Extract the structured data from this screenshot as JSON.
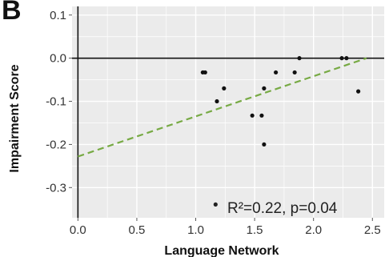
{
  "panel_label": "B",
  "chart_data": {
    "type": "scatter",
    "title": "",
    "xlabel": "Language Network",
    "ylabel": "Impairment Score",
    "xlim": [
      -0.05,
      2.6
    ],
    "ylim": [
      -0.37,
      0.12
    ],
    "x_ticks": [
      0.0,
      0.5,
      1.0,
      1.5,
      2.0,
      2.5
    ],
    "x_tick_labels": [
      "0.0",
      "0.5",
      "1.0",
      "1.5",
      "2.0",
      "2.5"
    ],
    "y_ticks": [
      0.1,
      0.0,
      -0.1,
      -0.2,
      -0.3
    ],
    "y_tick_labels": [
      "0.1",
      "0.0",
      "-0.1",
      "-0.2",
      "-0.3"
    ],
    "grid": true,
    "background": "#ebebeb",
    "grid_color": "#ffffff",
    "zero_lines": true,
    "points": [
      {
        "x": 1.06,
        "y": -0.033
      },
      {
        "x": 1.08,
        "y": -0.033
      },
      {
        "x": 1.18,
        "y": -0.1
      },
      {
        "x": 1.24,
        "y": -0.07
      },
      {
        "x": 1.48,
        "y": -0.133
      },
      {
        "x": 1.56,
        "y": -0.133
      },
      {
        "x": 1.58,
        "y": -0.07
      },
      {
        "x": 1.58,
        "y": -0.2
      },
      {
        "x": 1.68,
        "y": -0.033
      },
      {
        "x": 1.84,
        "y": -0.033
      },
      {
        "x": 1.88,
        "y": 0.0
      },
      {
        "x": 2.24,
        "y": 0.0
      },
      {
        "x": 2.28,
        "y": 0.0
      },
      {
        "x": 2.38,
        "y": -0.077
      }
    ],
    "point_color": "#111111",
    "fit_line": {
      "x": [
        0.0,
        2.45
      ],
      "y": [
        -0.228,
        0.0
      ],
      "color": "#77aa44",
      "style": "dashed"
    },
    "annotation": {
      "marker": "•",
      "text": "R²=0.22, p=0.04"
    }
  }
}
